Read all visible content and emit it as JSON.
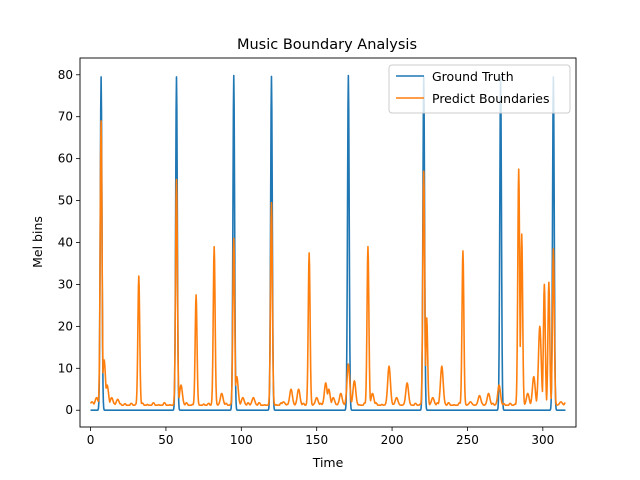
{
  "chart_data": {
    "type": "line",
    "title": "Music Boundary Analysis",
    "xlabel": "Time",
    "ylabel": "Mel bins",
    "xlim": [
      -7,
      322
    ],
    "ylim": [
      -4,
      84
    ],
    "xticks": [
      0,
      50,
      100,
      150,
      200,
      250,
      300
    ],
    "yticks": [
      0,
      10,
      20,
      30,
      40,
      50,
      60,
      70,
      80
    ],
    "grid": false,
    "legend_position": "top-right",
    "series": [
      {
        "name": "Ground Truth",
        "color": "#1f77b4",
        "baseline": 0,
        "x_range": [
          0,
          315
        ],
        "peaks": [
          {
            "x": 7,
            "y": 79.5
          },
          {
            "x": 57,
            "y": 79.5
          },
          {
            "x": 95,
            "y": 79.8
          },
          {
            "x": 120,
            "y": 79.6
          },
          {
            "x": 171,
            "y": 79.8
          },
          {
            "x": 221,
            "y": 79.5
          },
          {
            "x": 272,
            "y": 79.5
          },
          {
            "x": 307,
            "y": 79.5
          }
        ]
      },
      {
        "name": "Predict Boundaries",
        "color": "#ff7f0e",
        "baseline": 1.2,
        "x_range": [
          0,
          315
        ],
        "peaks": [
          {
            "x": 1,
            "y": 2.0
          },
          {
            "x": 4,
            "y": 3.0
          },
          {
            "x": 7,
            "y": 69.0
          },
          {
            "x": 9,
            "y": 12.0
          },
          {
            "x": 11,
            "y": 6.0
          },
          {
            "x": 14,
            "y": 3.0
          },
          {
            "x": 18,
            "y": 2.6
          },
          {
            "x": 32,
            "y": 32.0
          },
          {
            "x": 57,
            "y": 55.0
          },
          {
            "x": 60,
            "y": 6.0
          },
          {
            "x": 70,
            "y": 27.5
          },
          {
            "x": 82,
            "y": 39.0
          },
          {
            "x": 87,
            "y": 4.0
          },
          {
            "x": 95,
            "y": 41.0
          },
          {
            "x": 97,
            "y": 8.0
          },
          {
            "x": 101,
            "y": 3.0
          },
          {
            "x": 108,
            "y": 3.0
          },
          {
            "x": 120,
            "y": 49.5
          },
          {
            "x": 128,
            "y": 2.0
          },
          {
            "x": 133,
            "y": 5.0
          },
          {
            "x": 138,
            "y": 5.0
          },
          {
            "x": 145,
            "y": 37.5
          },
          {
            "x": 150,
            "y": 3.0
          },
          {
            "x": 156,
            "y": 6.5
          },
          {
            "x": 158,
            "y": 5.0
          },
          {
            "x": 161,
            "y": 3.0
          },
          {
            "x": 166,
            "y": 4.0
          },
          {
            "x": 171,
            "y": 11.0
          },
          {
            "x": 175,
            "y": 7.0
          },
          {
            "x": 184,
            "y": 39.0
          },
          {
            "x": 187,
            "y": 4.0
          },
          {
            "x": 198,
            "y": 10.5
          },
          {
            "x": 203,
            "y": 3.0
          },
          {
            "x": 210,
            "y": 6.5
          },
          {
            "x": 221,
            "y": 57.0
          },
          {
            "x": 223,
            "y": 22.0
          },
          {
            "x": 227,
            "y": 3.0
          },
          {
            "x": 233,
            "y": 10.5
          },
          {
            "x": 247,
            "y": 38.0
          },
          {
            "x": 252,
            "y": 2.0
          },
          {
            "x": 258,
            "y": 3.5
          },
          {
            "x": 264,
            "y": 4.0
          },
          {
            "x": 271,
            "y": 6.0
          },
          {
            "x": 284,
            "y": 57.5
          },
          {
            "x": 286,
            "y": 42.0
          },
          {
            "x": 290,
            "y": 4.0
          },
          {
            "x": 294,
            "y": 8.0
          },
          {
            "x": 298,
            "y": 20.0
          },
          {
            "x": 301,
            "y": 30.0
          },
          {
            "x": 304,
            "y": 30.5
          },
          {
            "x": 307,
            "y": 38.5
          },
          {
            "x": 312,
            "y": 2.0
          }
        ]
      }
    ]
  }
}
